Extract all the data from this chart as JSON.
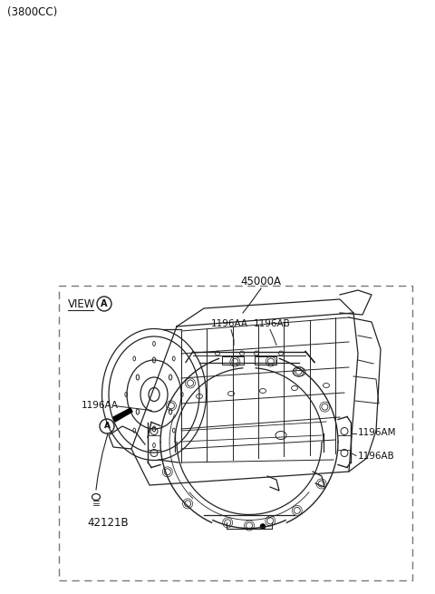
{
  "title_text": "(3800CC)",
  "part_45000A_label": "45000A",
  "part_42121B_label": "42121B",
  "view_label": "VIEW",
  "callout_letter": "A",
  "label_1196AA_top": "1196AA",
  "label_1196AB_top": "1196AB",
  "label_1196AA_left": "1196AA",
  "label_1196AM": "1196AM",
  "label_1196AB_right": "1196AB",
  "bg_color": "#ffffff",
  "line_color": "#222222",
  "text_color": "#111111",
  "dashed_box_color": "#777777",
  "fig_width": 4.8,
  "fig_height": 6.55
}
